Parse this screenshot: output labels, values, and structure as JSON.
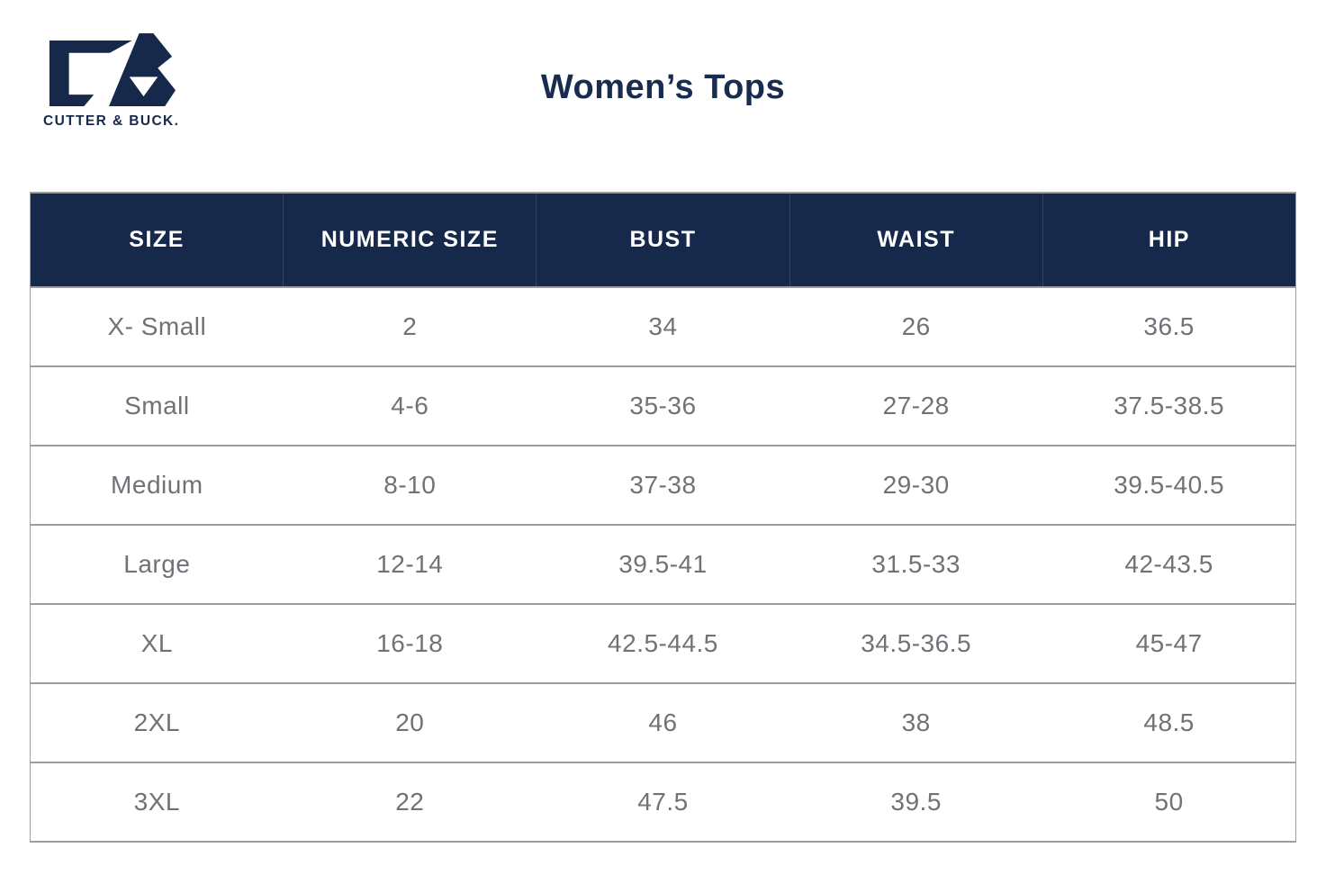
{
  "brand": {
    "wordmark": "CUTTER & BUCK.",
    "logo_icon": "cutter-buck-cb-monogram"
  },
  "page": {
    "title": "Women’s Tops"
  },
  "colors": {
    "navy_header_bg": "#16294A",
    "header_text": "#FFFFFF",
    "title_navy": "#182C50",
    "body_text_gray": "#6F7377",
    "grid_line_gray": "#9B9EA1",
    "page_bg": "#FFFFFF"
  },
  "table": {
    "columns": [
      {
        "key": "size",
        "label": "SIZE"
      },
      {
        "key": "numeric-size",
        "label": "NUMERIC SIZE"
      },
      {
        "key": "bust",
        "label": "BUST"
      },
      {
        "key": "waist",
        "label": "WAIST"
      },
      {
        "key": "hip",
        "label": "HIP"
      }
    ],
    "rows": [
      [
        "X- Small",
        "2",
        "34",
        "26",
        "36.5"
      ],
      [
        "Small",
        "4-6",
        "35-36",
        "27-28",
        "37.5-38.5"
      ],
      [
        "Medium",
        "8-10",
        "37-38",
        "29-30",
        "39.5-40.5"
      ],
      [
        "Large",
        "12-14",
        "39.5-41",
        "31.5-33",
        "42-43.5"
      ],
      [
        "XL",
        "16-18",
        "42.5-44.5",
        "34.5-36.5",
        "45-47"
      ],
      [
        "2XL",
        "20",
        "46",
        "38",
        "48.5"
      ],
      [
        "3XL",
        "22",
        "47.5",
        "39.5",
        "50"
      ]
    ]
  }
}
